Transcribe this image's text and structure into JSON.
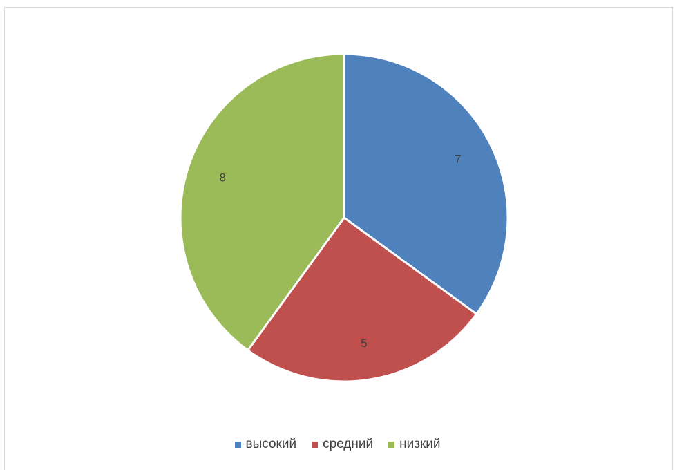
{
  "chart_data": {
    "type": "pie",
    "categories": [
      "высокий",
      "средний",
      "низкий"
    ],
    "values": [
      7,
      5,
      8
    ],
    "colors": [
      "#4F81BD",
      "#C0504D",
      "#9BBB59"
    ],
    "data_labels": [
      "7",
      "5",
      "8"
    ],
    "start_angle_deg": 0,
    "direction": "clockwise",
    "legend_position": "bottom"
  }
}
